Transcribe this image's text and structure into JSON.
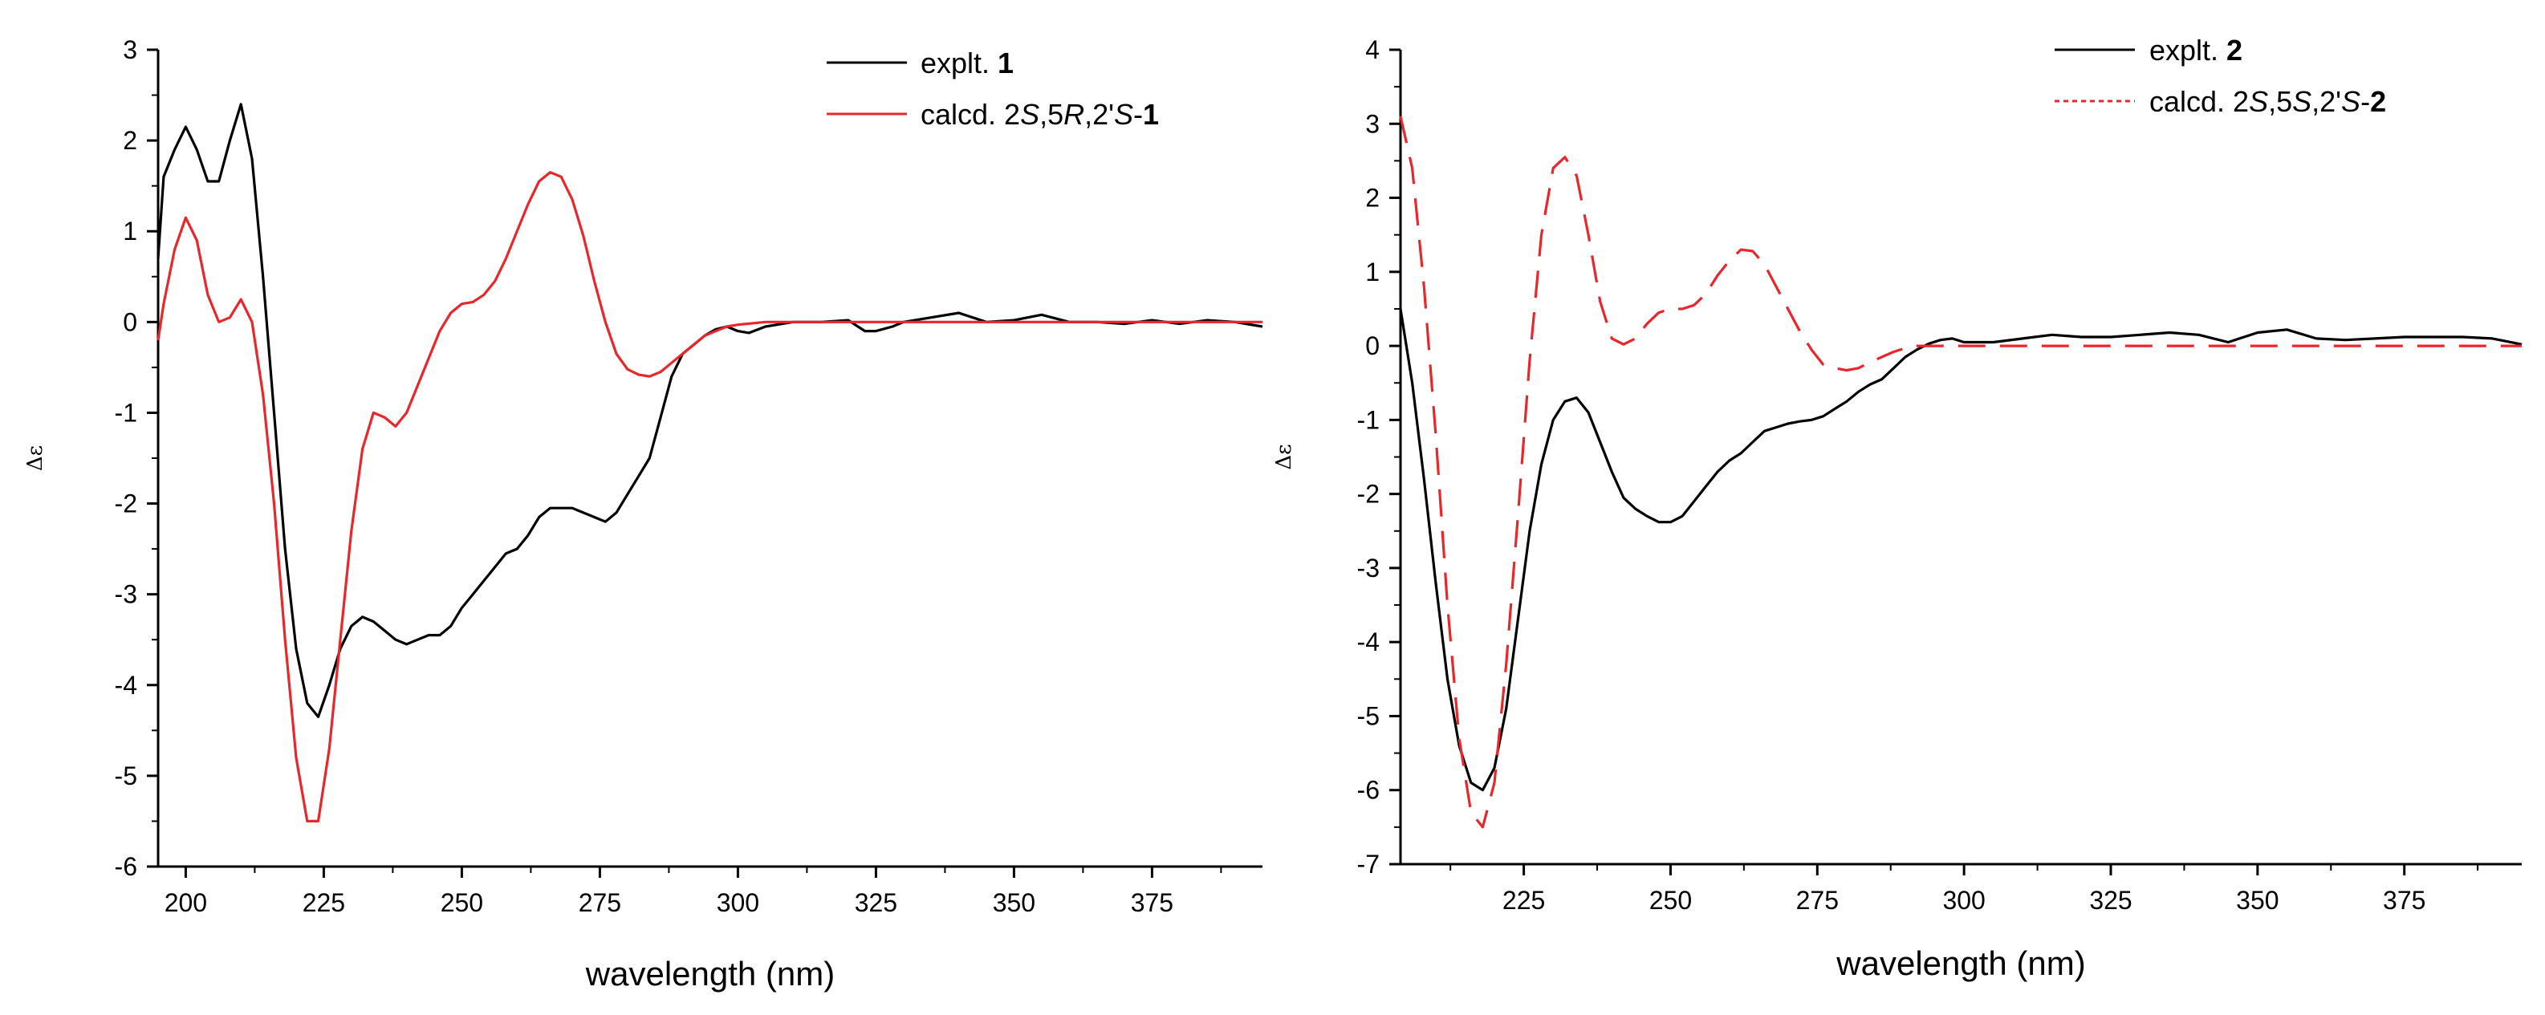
{
  "chart_data": [
    {
      "type": "line",
      "xlabel": "wavelength (nm)",
      "ylabel": "Δε",
      "xlim": [
        195,
        395
      ],
      "ylim": [
        -6,
        3
      ],
      "xticks": [
        "200",
        "225",
        "250",
        "275",
        "300",
        "325",
        "350",
        "375"
      ],
      "yticks": [
        "3",
        "2",
        "1",
        "0",
        "-1",
        "-2",
        "-3",
        "-4",
        "-5",
        "-6"
      ],
      "legend_position": "top-right",
      "series": [
        {
          "name_prefix": "explt. ",
          "name_bold": "1",
          "color": "#000000",
          "dash": "solid",
          "x": [
            195,
            196,
            198,
            200,
            202,
            204,
            206,
            208,
            210,
            212,
            214,
            216,
            218,
            220,
            222,
            224,
            226,
            228,
            230,
            232,
            234,
            236,
            238,
            240,
            242,
            244,
            246,
            248,
            250,
            252,
            254,
            256,
            258,
            260,
            262,
            264,
            266,
            268,
            270,
            272,
            274,
            276,
            278,
            280,
            282,
            284,
            286,
            288,
            290,
            292,
            294,
            296,
            298,
            300,
            302,
            305,
            310,
            315,
            320,
            323,
            325,
            328,
            330,
            335,
            340,
            345,
            350,
            355,
            360,
            365,
            370,
            375,
            380,
            385,
            390,
            395
          ],
          "y": [
            0.7,
            1.6,
            1.9,
            2.15,
            1.9,
            1.55,
            1.55,
            2.0,
            2.4,
            1.8,
            0.5,
            -1.0,
            -2.5,
            -3.6,
            -4.2,
            -4.35,
            -4.0,
            -3.6,
            -3.35,
            -3.25,
            -3.3,
            -3.4,
            -3.5,
            -3.55,
            -3.5,
            -3.45,
            -3.45,
            -3.35,
            -3.15,
            -3.0,
            -2.85,
            -2.7,
            -2.55,
            -2.5,
            -2.35,
            -2.15,
            -2.05,
            -2.05,
            -2.05,
            -2.1,
            -2.15,
            -2.2,
            -2.1,
            -1.9,
            -1.7,
            -1.5,
            -1.05,
            -0.6,
            -0.35,
            -0.25,
            -0.15,
            -0.08,
            -0.05,
            -0.1,
            -0.12,
            -0.05,
            0.0,
            0.0,
            0.02,
            -0.1,
            -0.1,
            -0.05,
            0.0,
            0.05,
            0.1,
            0.0,
            0.02,
            0.08,
            0.0,
            0.0,
            -0.02,
            0.02,
            -0.02,
            0.02,
            0.0,
            -0.05
          ]
        },
        {
          "name_prefix": "calcd. 2",
          "name_italic_1": "S",
          "name_mid": ",5",
          "name_italic_2": "R",
          "name_mid2": ",2'",
          "name_italic_3": "S",
          "name_tail": "-",
          "name_bold": "1",
          "color": "#e8262b",
          "dash": "solid",
          "x": [
            195,
            196,
            198,
            200,
            202,
            204,
            206,
            208,
            210,
            212,
            214,
            216,
            218,
            220,
            222,
            224,
            226,
            228,
            230,
            232,
            234,
            236,
            238,
            240,
            242,
            244,
            246,
            248,
            250,
            252,
            254,
            256,
            258,
            260,
            262,
            264,
            266,
            268,
            270,
            272,
            274,
            276,
            278,
            280,
            282,
            284,
            286,
            288,
            290,
            292,
            294,
            296,
            298,
            300,
            305,
            310,
            320,
            330,
            340,
            350,
            360,
            370,
            380,
            390,
            395
          ],
          "y": [
            -0.2,
            0.2,
            0.8,
            1.15,
            0.9,
            0.3,
            0.0,
            0.05,
            0.25,
            0.0,
            -0.8,
            -2.0,
            -3.5,
            -4.8,
            -5.5,
            -5.5,
            -4.7,
            -3.5,
            -2.3,
            -1.4,
            -1.0,
            -1.05,
            -1.15,
            -1.0,
            -0.7,
            -0.4,
            -0.1,
            0.1,
            0.2,
            0.22,
            0.3,
            0.45,
            0.7,
            1.0,
            1.3,
            1.55,
            1.65,
            1.6,
            1.35,
            0.95,
            0.45,
            0.0,
            -0.35,
            -0.52,
            -0.58,
            -0.6,
            -0.55,
            -0.45,
            -0.35,
            -0.25,
            -0.15,
            -0.1,
            -0.05,
            -0.03,
            0.0,
            0.0,
            0.0,
            0.0,
            0.0,
            0.0,
            0.0,
            0.0,
            0.0,
            0.0,
            0.0
          ]
        }
      ]
    },
    {
      "type": "line",
      "xlabel": "wavelength (nm)",
      "ylabel": "Δε",
      "xlim": [
        204,
        395
      ],
      "ylim": [
        -7,
        4
      ],
      "xticks": [
        "225",
        "250",
        "275",
        "300",
        "325",
        "350",
        "375"
      ],
      "yticks": [
        "4",
        "3",
        "2",
        "1",
        "0",
        "-1",
        "-2",
        "-3",
        "-4",
        "-5",
        "-6",
        "-7"
      ],
      "legend_position": "top-right",
      "series": [
        {
          "name_prefix": "explt. ",
          "name_bold": "2",
          "color": "#000000",
          "dash": "solid",
          "x": [
            204,
            206,
            208,
            210,
            212,
            214,
            216,
            218,
            220,
            222,
            224,
            226,
            228,
            230,
            232,
            234,
            236,
            238,
            240,
            242,
            244,
            246,
            248,
            250,
            252,
            254,
            256,
            258,
            260,
            262,
            264,
            266,
            268,
            270,
            272,
            274,
            276,
            278,
            280,
            282,
            284,
            286,
            288,
            290,
            292,
            294,
            296,
            298,
            300,
            305,
            310,
            315,
            320,
            325,
            330,
            335,
            340,
            345,
            350,
            355,
            360,
            365,
            370,
            375,
            380,
            385,
            390,
            395
          ],
          "y": [
            0.5,
            -0.5,
            -1.8,
            -3.2,
            -4.5,
            -5.4,
            -5.9,
            -6.0,
            -5.7,
            -4.9,
            -3.7,
            -2.5,
            -1.6,
            -1.0,
            -0.75,
            -0.7,
            -0.9,
            -1.3,
            -1.7,
            -2.05,
            -2.2,
            -2.3,
            -2.38,
            -2.38,
            -2.3,
            -2.1,
            -1.9,
            -1.7,
            -1.55,
            -1.45,
            -1.3,
            -1.15,
            -1.1,
            -1.05,
            -1.02,
            -1.0,
            -0.95,
            -0.85,
            -0.75,
            -0.62,
            -0.52,
            -0.45,
            -0.3,
            -0.15,
            -0.05,
            0.03,
            0.08,
            0.1,
            0.05,
            0.05,
            0.1,
            0.15,
            0.12,
            0.12,
            0.15,
            0.18,
            0.15,
            0.05,
            0.18,
            0.22,
            0.1,
            0.08,
            0.1,
            0.12,
            0.12,
            0.12,
            0.1,
            0.02
          ]
        },
        {
          "name_prefix": "calcd. 2",
          "name_italic_1": "S",
          "name_mid": ",5",
          "name_italic_2": "S",
          "name_mid2": ",2'",
          "name_italic_3": "S",
          "name_tail": "-",
          "name_bold": "2",
          "color": "#e8262b",
          "dash": "dashed",
          "x": [
            204,
            206,
            208,
            210,
            212,
            214,
            216,
            218,
            220,
            222,
            224,
            226,
            228,
            230,
            232,
            234,
            236,
            238,
            240,
            242,
            244,
            246,
            248,
            250,
            252,
            254,
            256,
            258,
            260,
            262,
            264,
            266,
            268,
            270,
            272,
            274,
            276,
            278,
            280,
            282,
            284,
            286,
            288,
            290,
            292,
            294,
            296,
            298,
            300,
            305,
            310,
            320,
            330,
            340,
            350,
            360,
            370,
            380,
            390,
            395
          ],
          "y": [
            3.1,
            2.4,
            0.8,
            -1.2,
            -3.5,
            -5.3,
            -6.3,
            -6.5,
            -5.9,
            -4.3,
            -2.3,
            -0.2,
            1.5,
            2.4,
            2.55,
            2.3,
            1.5,
            0.6,
            0.1,
            0.02,
            0.1,
            0.3,
            0.45,
            0.5,
            0.5,
            0.55,
            0.7,
            0.95,
            1.15,
            1.3,
            1.28,
            1.1,
            0.8,
            0.5,
            0.2,
            -0.05,
            -0.25,
            -0.3,
            -0.33,
            -0.3,
            -0.22,
            -0.15,
            -0.08,
            -0.03,
            0.0,
            0.0,
            0.0,
            0.0,
            0.0,
            0.0,
            0.0,
            0.0,
            0.0,
            0.0,
            0.0,
            0.0,
            0.0,
            0.0,
            0.0,
            0.0
          ]
        }
      ]
    }
  ]
}
